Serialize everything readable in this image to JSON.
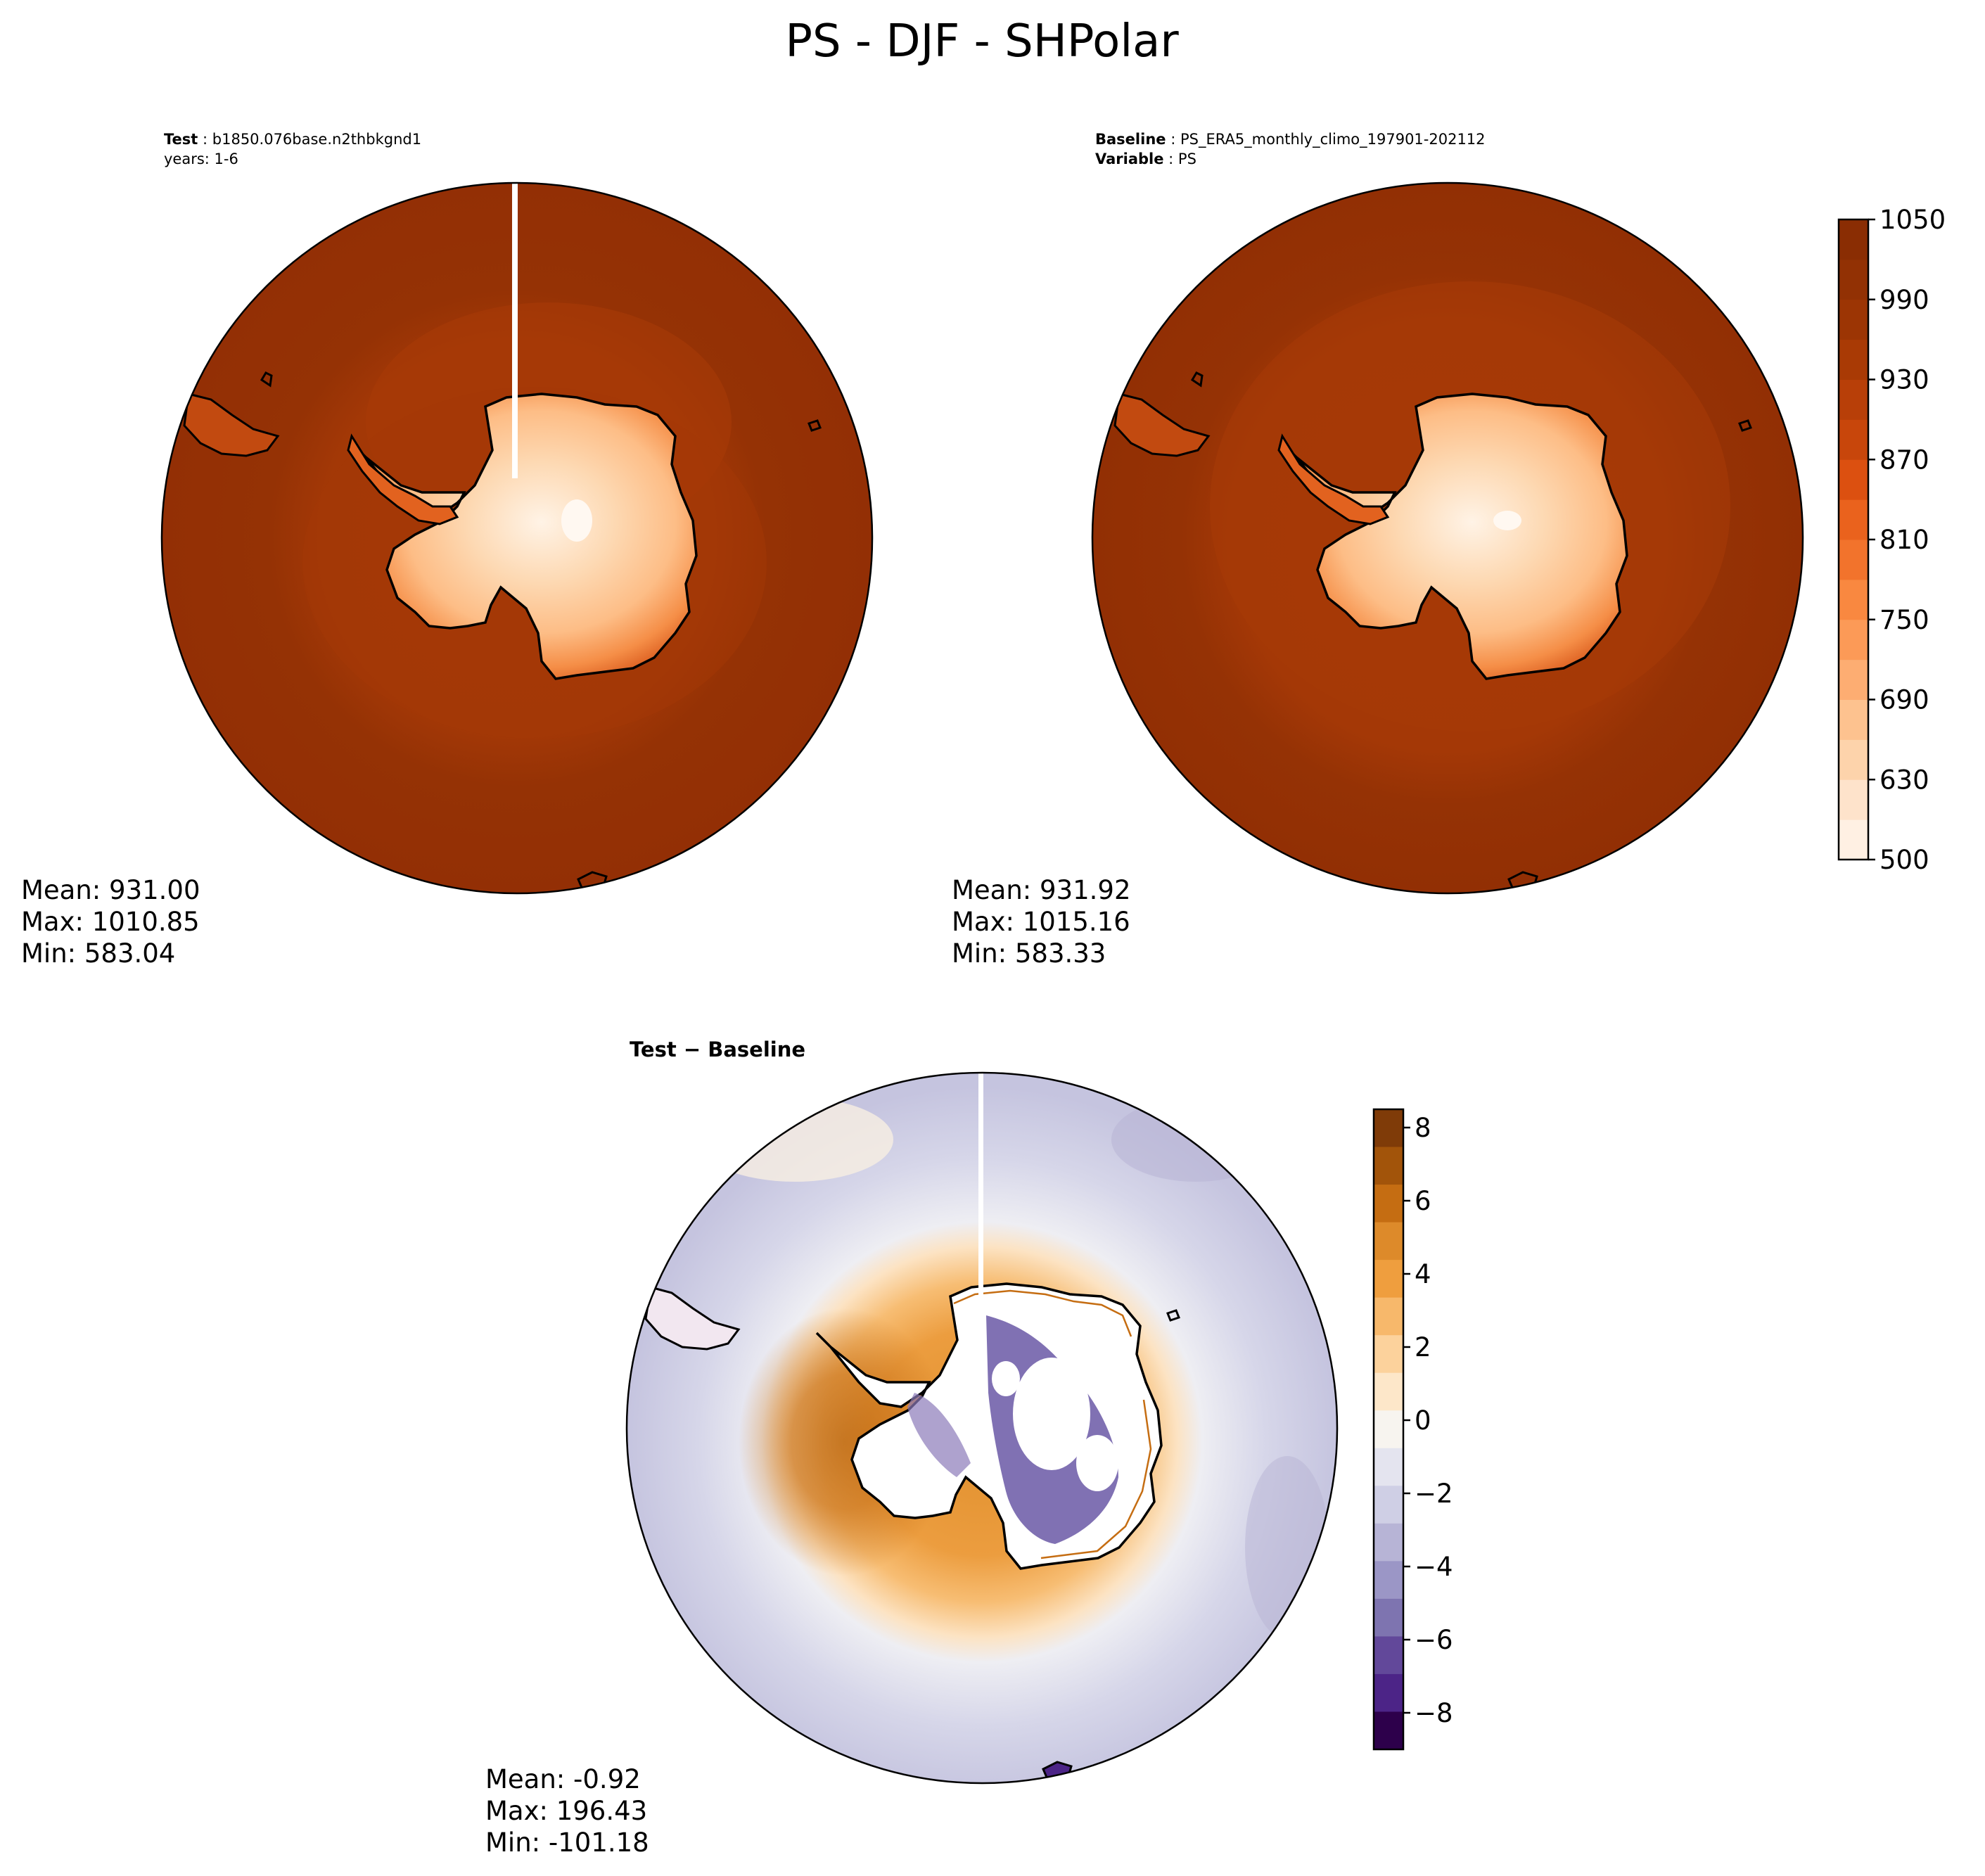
{
  "title": "PS - DJF - SHPolar",
  "chart_data": [
    {
      "type": "heatmap",
      "projection": "south polar stereographic",
      "header": [
        {
          "label": "Test",
          "value": "b1850.076base.n2thbkgnd1"
        },
        {
          "label": "",
          "value": "years: 1-6"
        }
      ],
      "colormap": "Oranges",
      "stats": {
        "mean": "Mean: 931.00",
        "max": "Max: 1010.85",
        "min": "Min: 583.04"
      }
    },
    {
      "type": "heatmap",
      "projection": "south polar stereographic",
      "header": [
        {
          "label": "Baseline",
          "value": "PS_ERA5_monthly_climo_197901-202112"
        },
        {
          "label": "Variable",
          "value": "PS"
        }
      ],
      "colormap": "Oranges",
      "stats": {
        "mean": "Mean: 931.92",
        "max": "Max: 1015.16",
        "min": "Min: 583.33"
      }
    },
    {
      "type": "heatmap",
      "projection": "south polar stereographic",
      "header": [
        {
          "label": "Test − Baseline",
          "value": ""
        }
      ],
      "colormap": "PuOr_r",
      "stats": {
        "mean": "Mean: -0.92",
        "max": "Max: 196.43",
        "min": "Min: -101.18"
      }
    }
  ],
  "colorbars": [
    {
      "range": [
        500,
        1050
      ],
      "boundaries": [
        500,
        600,
        630,
        660,
        690,
        720,
        750,
        780,
        810,
        840,
        870,
        900,
        930,
        960,
        990,
        1020,
        1050
      ],
      "ticks": [
        500,
        630,
        690,
        750,
        810,
        870,
        930,
        990,
        1050
      ],
      "tick_labels": [
        "500",
        "630",
        "690",
        "750",
        "810",
        "870",
        "930",
        "990",
        "1050"
      ],
      "colors": [
        "#fff0e3",
        "#fee3cb",
        "#fdd3ab",
        "#fdc28f",
        "#fdad72",
        "#fc9a57",
        "#f98840",
        "#f2732c",
        "#ea621d",
        "#dc5010",
        "#c8460b",
        "#b83f08",
        "#a93a05",
        "#9c3504",
        "#923104",
        "#8a2d03"
      ]
    },
    {
      "range": [
        -9,
        8.5
      ],
      "ticks": [
        8,
        6,
        4,
        2,
        0,
        -2,
        -4,
        -6,
        -8
      ],
      "tick_labels": [
        "8",
        "6",
        "4",
        "2",
        "0",
        "−2",
        "−4",
        "−6",
        "−8"
      ],
      "colors_top_to_bottom": [
        "#7f3b08",
        "#a2540a",
        "#c56d12",
        "#dd8a2a",
        "#ef9e3e",
        "#f7b86b",
        "#fcd29c",
        "#fde7c9",
        "#f7f4ef",
        "#e4e4ef",
        "#cfcfe5",
        "#b7b4d6",
        "#9b96c6",
        "#7e74b0",
        "#62489a",
        "#4c2487",
        "#2d004b"
      ]
    }
  ]
}
